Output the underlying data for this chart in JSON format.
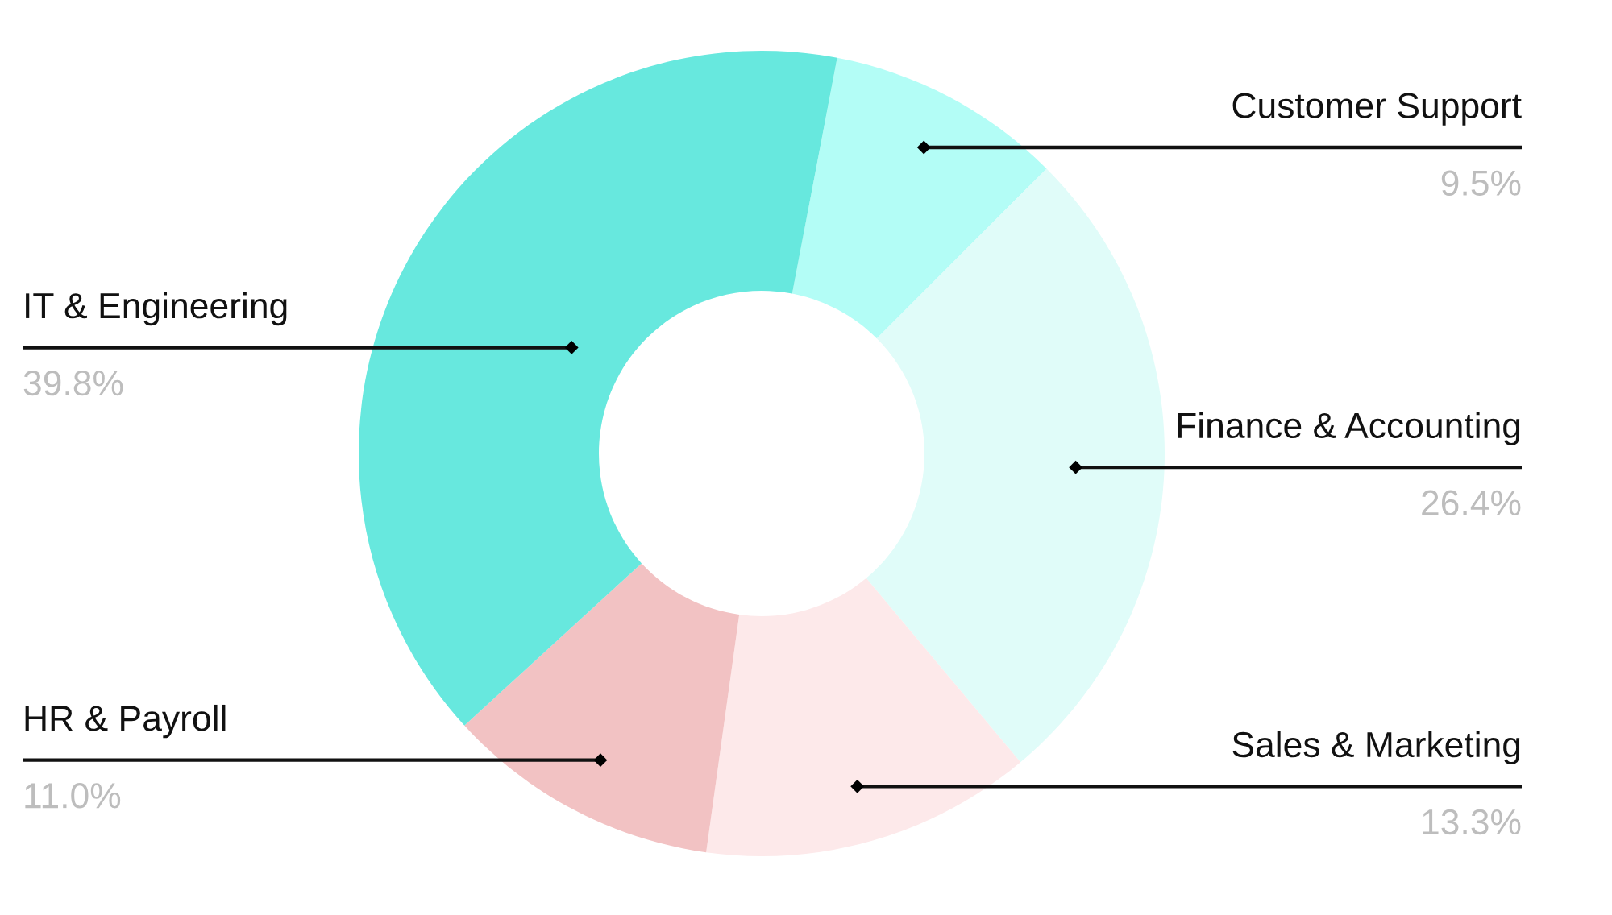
{
  "chart_data": {
    "type": "donut",
    "categories": [
      "Customer Support",
      "Finance & Accounting",
      "Sales & Marketing",
      "HR & Payroll",
      "IT & Engineering"
    ],
    "values": [
      9.5,
      26.4,
      13.3,
      11.0,
      39.8
    ],
    "colors": [
      "#b3fdf6",
      "#e0fcf9",
      "#fde9ea",
      "#f2c2c3",
      "#67e8de"
    ],
    "value_labels": [
      "9.5%",
      "26.4%",
      "13.3%",
      "11.0%",
      "39.8%"
    ]
  }
}
